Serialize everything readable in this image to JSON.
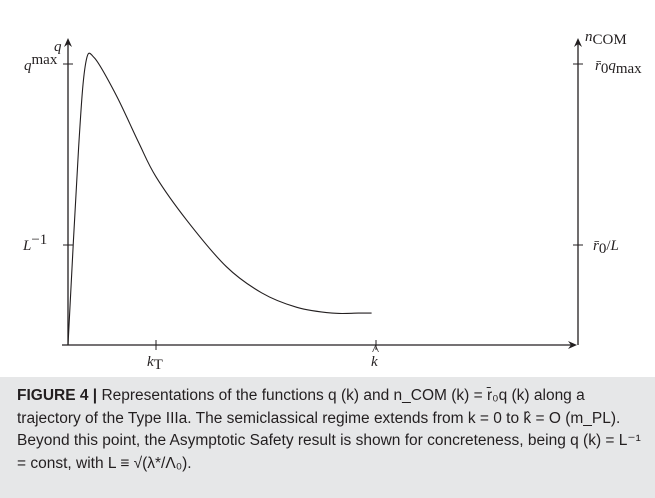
{
  "chart_data": {
    "type": "line",
    "title": "",
    "x_axis": {
      "ticks": [
        {
          "id": "kT",
          "label": "k_T"
        },
        {
          "id": "khat",
          "label": "k̂"
        }
      ]
    },
    "y_axis_left": {
      "label": "q",
      "ticks": [
        {
          "id": "qmax",
          "label": "q^max"
        },
        {
          "id": "Linv",
          "label": "L^−1"
        }
      ]
    },
    "y_axis_right": {
      "label": "n_COM",
      "ticks": [
        {
          "id": "r0qmax",
          "label": "r̄₀q_max"
        },
        {
          "id": "r0L",
          "label": "r̄₀/L"
        }
      ]
    },
    "series": [
      {
        "x": [
          0,
          0.12,
          0.2,
          0.3,
          0.55,
          0.8,
          1.0,
          1.35,
          1.8,
          2.2,
          2.6,
          3.0,
          3.3,
          3.45
        ],
        "y": [
          0,
          0.68,
          0.97,
          0.99,
          0.86,
          0.7,
          0.58,
          0.43,
          0.27,
          0.18,
          0.13,
          0.11,
          0.11,
          0.11
        ]
      }
    ],
    "line_color": "#231f20"
  },
  "caption": {
    "label": "FIGURE 4 |",
    "text": " Representations of the functions q (k) and n_COM (k) = r̄₀q (k) along a trajectory of the Type IIIa. The semiclassical regime extends from k = 0 to k̂ = O (m_PL). Beyond this point, the Asymptotic Safety result is shown for concreteness, being q (k) = L⁻¹ = const, with L ≡ √(λ*/Λ₀)."
  }
}
